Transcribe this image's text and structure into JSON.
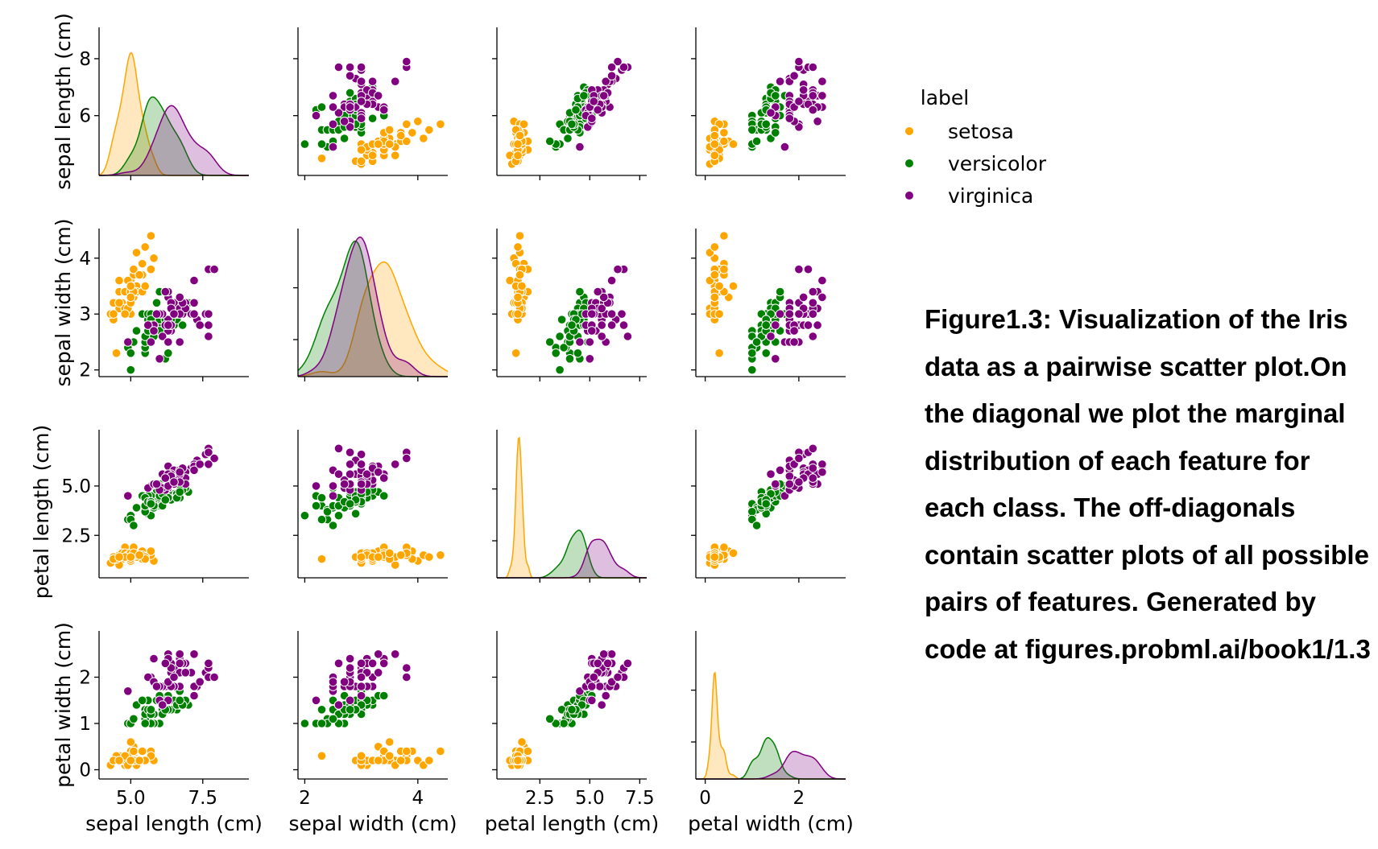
{
  "caption": "Figure1.3: Visualization of the Iris data as a pairwise scatter plot.On the diagonal we plot the marginal distribution of each feature for each class. The off-diagonals contain scatter plots of all possible pairs of features. Generated by code at figures.probml.ai/book1/1.3",
  "chart_data": {
    "type": "scatter",
    "subtype": "pairplot",
    "diagonal": "kde",
    "grid": false,
    "legend_placement": "top-right",
    "legend_title": "label",
    "colors": {
      "setosa": "#FFA500",
      "versicolor": "#008000",
      "virginica": "#800080"
    },
    "variables": [
      {
        "name": "sepal length (cm)",
        "axis_label": "sepal length (cm)",
        "range": [
          3.9,
          9.1
        ],
        "diag_max": 1.32,
        "yticks": [
          {
            "v": 6,
            "label": "6"
          },
          {
            "v": 8,
            "label": "8"
          }
        ],
        "xticks": [
          {
            "v": 5,
            "label": "5.0"
          },
          {
            "v": 7.5,
            "label": "7.5"
          }
        ]
      },
      {
        "name": "sepal width (cm)",
        "axis_label": "sepal width (cm)",
        "range": [
          1.88,
          4.53
        ],
        "diag_max": 1.3,
        "yticks": [
          {
            "v": 2,
            "label": "2"
          },
          {
            "v": 3,
            "label": "3"
          },
          {
            "v": 4,
            "label": "4"
          }
        ],
        "xticks": [
          {
            "v": 2,
            "label": "2"
          },
          {
            "v": 4,
            "label": "4"
          }
        ]
      },
      {
        "name": "petal length (cm)",
        "axis_label": "petal length (cm)",
        "range": [
          0.35,
          7.85
        ],
        "diag_max": 2.45,
        "yticks": [
          {
            "v": 2.5,
            "label": "2.5"
          },
          {
            "v": 5,
            "label": "5.0"
          }
        ],
        "xticks": [
          {
            "v": 2.5,
            "label": "2.5"
          },
          {
            "v": 5,
            "label": "5.0"
          },
          {
            "v": 7.5,
            "label": "7.5"
          }
        ]
      },
      {
        "name": "petal width (cm)",
        "axis_label": "petal width (cm)",
        "range": [
          -0.2,
          3.0
        ],
        "diag_max": 6.6,
        "yticks": [
          {
            "v": 0,
            "label": "0"
          },
          {
            "v": 1,
            "label": "1"
          },
          {
            "v": 2,
            "label": "2"
          }
        ],
        "xticks": [
          {
            "v": 0,
            "label": "0"
          },
          {
            "v": 2,
            "label": "2"
          }
        ]
      }
    ],
    "series": [
      {
        "name": "setosa",
        "color": "#FFA500",
        "points": [
          [
            5.1,
            3.5,
            1.4,
            0.2
          ],
          [
            4.9,
            3.0,
            1.4,
            0.2
          ],
          [
            4.7,
            3.2,
            1.3,
            0.2
          ],
          [
            4.6,
            3.1,
            1.5,
            0.2
          ],
          [
            5.0,
            3.6,
            1.4,
            0.2
          ],
          [
            5.4,
            3.9,
            1.7,
            0.4
          ],
          [
            4.6,
            3.4,
            1.4,
            0.3
          ],
          [
            5.0,
            3.4,
            1.5,
            0.2
          ],
          [
            4.4,
            2.9,
            1.4,
            0.2
          ],
          [
            4.9,
            3.1,
            1.5,
            0.1
          ],
          [
            5.4,
            3.7,
            1.5,
            0.2
          ],
          [
            4.8,
            3.4,
            1.6,
            0.2
          ],
          [
            4.8,
            3.0,
            1.4,
            0.1
          ],
          [
            4.3,
            3.0,
            1.1,
            0.1
          ],
          [
            5.8,
            4.0,
            1.2,
            0.2
          ],
          [
            5.7,
            4.4,
            1.5,
            0.4
          ],
          [
            5.4,
            3.9,
            1.3,
            0.4
          ],
          [
            5.1,
            3.5,
            1.4,
            0.3
          ],
          [
            5.7,
            3.8,
            1.7,
            0.3
          ],
          [
            5.1,
            3.8,
            1.5,
            0.3
          ],
          [
            5.4,
            3.4,
            1.7,
            0.2
          ],
          [
            5.1,
            3.7,
            1.5,
            0.4
          ],
          [
            4.6,
            3.6,
            1.0,
            0.2
          ],
          [
            5.1,
            3.3,
            1.7,
            0.5
          ],
          [
            4.8,
            3.4,
            1.9,
            0.2
          ],
          [
            5.0,
            3.0,
            1.6,
            0.2
          ],
          [
            5.0,
            3.4,
            1.6,
            0.4
          ],
          [
            5.2,
            3.5,
            1.5,
            0.2
          ],
          [
            5.2,
            3.4,
            1.4,
            0.2
          ],
          [
            4.7,
            3.2,
            1.6,
            0.2
          ],
          [
            4.8,
            3.1,
            1.6,
            0.2
          ],
          [
            5.4,
            3.4,
            1.5,
            0.4
          ],
          [
            5.2,
            4.1,
            1.5,
            0.1
          ],
          [
            5.5,
            4.2,
            1.4,
            0.2
          ],
          [
            4.9,
            3.1,
            1.5,
            0.2
          ],
          [
            5.0,
            3.2,
            1.2,
            0.2
          ],
          [
            5.5,
            3.5,
            1.3,
            0.2
          ],
          [
            4.9,
            3.6,
            1.4,
            0.1
          ],
          [
            4.4,
            3.0,
            1.3,
            0.2
          ],
          [
            5.1,
            3.4,
            1.5,
            0.2
          ],
          [
            5.0,
            3.5,
            1.3,
            0.3
          ],
          [
            4.5,
            2.3,
            1.3,
            0.3
          ],
          [
            4.4,
            3.2,
            1.3,
            0.2
          ],
          [
            5.0,
            3.5,
            1.6,
            0.6
          ],
          [
            5.1,
            3.8,
            1.9,
            0.4
          ],
          [
            4.8,
            3.0,
            1.4,
            0.3
          ],
          [
            5.1,
            3.8,
            1.6,
            0.2
          ],
          [
            4.6,
            3.2,
            1.4,
            0.2
          ],
          [
            5.3,
            3.7,
            1.5,
            0.2
          ],
          [
            5.0,
            3.3,
            1.4,
            0.2
          ]
        ]
      },
      {
        "name": "versicolor",
        "color": "#008000",
        "points": [
          [
            7.0,
            3.2,
            4.7,
            1.4
          ],
          [
            6.4,
            3.2,
            4.5,
            1.5
          ],
          [
            6.9,
            3.1,
            4.9,
            1.5
          ],
          [
            5.5,
            2.3,
            4.0,
            1.3
          ],
          [
            6.5,
            2.8,
            4.6,
            1.5
          ],
          [
            5.7,
            2.8,
            4.5,
            1.3
          ],
          [
            6.3,
            3.3,
            4.7,
            1.6
          ],
          [
            4.9,
            2.4,
            3.3,
            1.0
          ],
          [
            6.6,
            2.9,
            4.6,
            1.3
          ],
          [
            5.2,
            2.7,
            3.9,
            1.4
          ],
          [
            5.0,
            2.0,
            3.5,
            1.0
          ],
          [
            5.9,
            3.0,
            4.2,
            1.5
          ],
          [
            6.0,
            2.2,
            4.0,
            1.0
          ],
          [
            6.1,
            2.9,
            4.7,
            1.4
          ],
          [
            5.6,
            2.9,
            3.6,
            1.3
          ],
          [
            6.7,
            3.1,
            4.4,
            1.4
          ],
          [
            5.6,
            3.0,
            4.5,
            1.5
          ],
          [
            5.8,
            2.7,
            4.1,
            1.0
          ],
          [
            6.2,
            2.2,
            4.5,
            1.5
          ],
          [
            5.6,
            2.5,
            3.9,
            1.1
          ],
          [
            5.9,
            3.2,
            4.8,
            1.8
          ],
          [
            6.1,
            2.8,
            4.0,
            1.3
          ],
          [
            6.3,
            2.5,
            4.9,
            1.5
          ],
          [
            6.1,
            2.8,
            4.7,
            1.2
          ],
          [
            6.4,
            2.9,
            4.3,
            1.3
          ],
          [
            6.6,
            3.0,
            4.4,
            1.4
          ],
          [
            6.8,
            2.8,
            4.8,
            1.4
          ],
          [
            6.7,
            3.0,
            5.0,
            1.7
          ],
          [
            6.0,
            2.9,
            4.5,
            1.5
          ],
          [
            5.7,
            2.6,
            3.5,
            1.0
          ],
          [
            5.5,
            2.4,
            3.8,
            1.1
          ],
          [
            5.5,
            2.4,
            3.7,
            1.0
          ],
          [
            5.8,
            2.7,
            3.9,
            1.2
          ],
          [
            6.0,
            2.7,
            5.1,
            1.6
          ],
          [
            5.4,
            3.0,
            4.5,
            1.5
          ],
          [
            6.0,
            3.4,
            4.5,
            1.6
          ],
          [
            6.7,
            3.1,
            4.7,
            1.5
          ],
          [
            6.3,
            2.3,
            4.4,
            1.3
          ],
          [
            5.6,
            3.0,
            4.1,
            1.3
          ],
          [
            5.5,
            2.5,
            4.0,
            1.3
          ],
          [
            5.5,
            2.6,
            4.4,
            1.2
          ],
          [
            6.1,
            3.0,
            4.6,
            1.4
          ],
          [
            5.8,
            2.6,
            4.0,
            1.2
          ],
          [
            5.0,
            2.3,
            3.3,
            1.0
          ],
          [
            5.6,
            2.7,
            4.2,
            1.3
          ],
          [
            5.7,
            3.0,
            4.2,
            1.2
          ],
          [
            5.7,
            2.9,
            4.2,
            1.3
          ],
          [
            6.2,
            2.9,
            4.3,
            1.3
          ],
          [
            5.1,
            2.5,
            3.0,
            1.1
          ],
          [
            5.7,
            2.8,
            4.1,
            1.3
          ]
        ]
      },
      {
        "name": "virginica",
        "color": "#800080",
        "points": [
          [
            6.3,
            3.3,
            6.0,
            2.5
          ],
          [
            5.8,
            2.7,
            5.1,
            1.9
          ],
          [
            7.1,
            3.0,
            5.9,
            2.1
          ],
          [
            6.3,
            2.9,
            5.6,
            1.8
          ],
          [
            6.5,
            3.0,
            5.8,
            2.2
          ],
          [
            7.6,
            3.0,
            6.6,
            2.1
          ],
          [
            4.9,
            2.5,
            4.5,
            1.7
          ],
          [
            7.3,
            2.9,
            6.3,
            1.8
          ],
          [
            6.7,
            2.5,
            5.8,
            1.8
          ],
          [
            7.2,
            3.6,
            6.1,
            2.5
          ],
          [
            6.5,
            3.2,
            5.1,
            2.0
          ],
          [
            6.4,
            2.7,
            5.3,
            1.9
          ],
          [
            6.8,
            3.0,
            5.5,
            2.1
          ],
          [
            5.7,
            2.5,
            5.0,
            2.0
          ],
          [
            5.8,
            2.8,
            5.1,
            2.4
          ],
          [
            6.4,
            3.2,
            5.3,
            2.3
          ],
          [
            6.5,
            3.0,
            5.5,
            1.8
          ],
          [
            7.7,
            3.8,
            6.7,
            2.2
          ],
          [
            7.7,
            2.6,
            6.9,
            2.3
          ],
          [
            6.0,
            2.2,
            5.0,
            1.5
          ],
          [
            6.9,
            3.2,
            5.7,
            2.3
          ],
          [
            5.6,
            2.8,
            4.9,
            2.0
          ],
          [
            7.7,
            2.8,
            6.7,
            2.0
          ],
          [
            6.3,
            2.7,
            4.9,
            1.8
          ],
          [
            6.7,
            3.3,
            5.7,
            2.1
          ],
          [
            7.2,
            3.2,
            6.0,
            1.8
          ],
          [
            6.2,
            2.8,
            4.8,
            1.8
          ],
          [
            6.1,
            3.0,
            4.9,
            1.8
          ],
          [
            6.4,
            2.8,
            5.6,
            2.1
          ],
          [
            7.2,
            3.0,
            5.8,
            1.6
          ],
          [
            7.4,
            2.8,
            6.1,
            1.9
          ],
          [
            7.9,
            3.8,
            6.4,
            2.0
          ],
          [
            6.4,
            2.8,
            5.6,
            2.2
          ],
          [
            6.3,
            2.8,
            5.1,
            1.5
          ],
          [
            6.1,
            2.6,
            5.6,
            1.4
          ],
          [
            7.7,
            3.0,
            6.1,
            2.3
          ],
          [
            6.3,
            3.4,
            5.6,
            2.4
          ],
          [
            6.4,
            3.1,
            5.5,
            1.8
          ],
          [
            6.0,
            3.0,
            4.8,
            1.8
          ],
          [
            6.9,
            3.1,
            5.4,
            2.1
          ],
          [
            6.7,
            3.1,
            5.6,
            2.4
          ],
          [
            6.9,
            3.1,
            5.1,
            2.3
          ],
          [
            5.8,
            2.7,
            5.1,
            1.9
          ],
          [
            6.8,
            3.2,
            5.9,
            2.3
          ],
          [
            6.7,
            3.3,
            5.7,
            2.5
          ],
          [
            6.7,
            3.0,
            5.2,
            2.3
          ],
          [
            6.3,
            2.5,
            5.0,
            1.9
          ],
          [
            6.5,
            3.0,
            5.2,
            2.0
          ],
          [
            6.2,
            3.4,
            5.4,
            2.3
          ],
          [
            5.9,
            3.0,
            5.1,
            1.8
          ]
        ]
      }
    ]
  }
}
